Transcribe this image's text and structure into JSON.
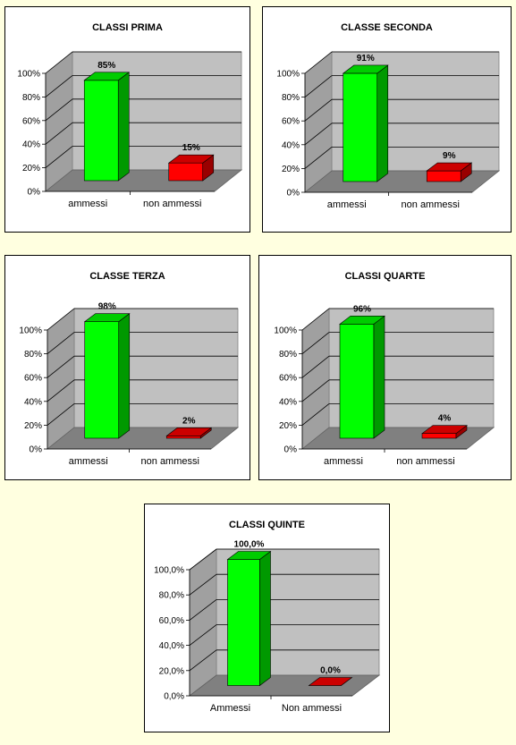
{
  "colors": {
    "background": "#FFFFE0",
    "ammessi": "#00FF00",
    "non_ammessi": "#FF0000",
    "plot_wall": "#C0C0C0",
    "plot_floor": "#808080"
  },
  "chart_data": [
    {
      "type": "bar",
      "title": "CLASSI PRIMA",
      "categories": [
        "ammessi",
        "non ammessi"
      ],
      "values": [
        85,
        15
      ],
      "value_labels": [
        "85%",
        "15%"
      ],
      "ylim": [
        0,
        100
      ],
      "yticks": [
        "0%",
        "20%",
        "40%",
        "60%",
        "80%",
        "100%"
      ],
      "grid": true
    },
    {
      "type": "bar",
      "title": "CLASSE SECONDA",
      "categories": [
        "ammessi",
        "non ammessi"
      ],
      "values": [
        91,
        9
      ],
      "value_labels": [
        "91%",
        "9%"
      ],
      "ylim": [
        0,
        100
      ],
      "yticks": [
        "0%",
        "20%",
        "40%",
        "60%",
        "80%",
        "100%"
      ],
      "grid": true
    },
    {
      "type": "bar",
      "title": "CLASSE TERZA",
      "categories": [
        "ammessi",
        "non ammessi"
      ],
      "values": [
        98,
        2
      ],
      "value_labels": [
        "98%",
        "2%"
      ],
      "ylim": [
        0,
        100
      ],
      "yticks": [
        "0%",
        "20%",
        "40%",
        "60%",
        "80%",
        "100%"
      ],
      "grid": true
    },
    {
      "type": "bar",
      "title": "CLASSI QUARTE",
      "categories": [
        "ammessi",
        "non ammessi"
      ],
      "values": [
        96,
        4
      ],
      "value_labels": [
        "96%",
        "4%"
      ],
      "ylim": [
        0,
        100
      ],
      "yticks": [
        "0%",
        "20%",
        "40%",
        "60%",
        "80%",
        "100%"
      ],
      "grid": true
    },
    {
      "type": "bar",
      "title": "CLASSI QUINTE",
      "categories": [
        "Ammessi",
        "Non ammessi"
      ],
      "values": [
        100.0,
        0.0
      ],
      "value_labels": [
        "100,0%",
        "0,0%"
      ],
      "ylim": [
        0,
        100
      ],
      "yticks": [
        "0,0%",
        "20,0%",
        "40,0%",
        "60,0%",
        "80,0%",
        "100,0%"
      ],
      "grid": true
    }
  ]
}
